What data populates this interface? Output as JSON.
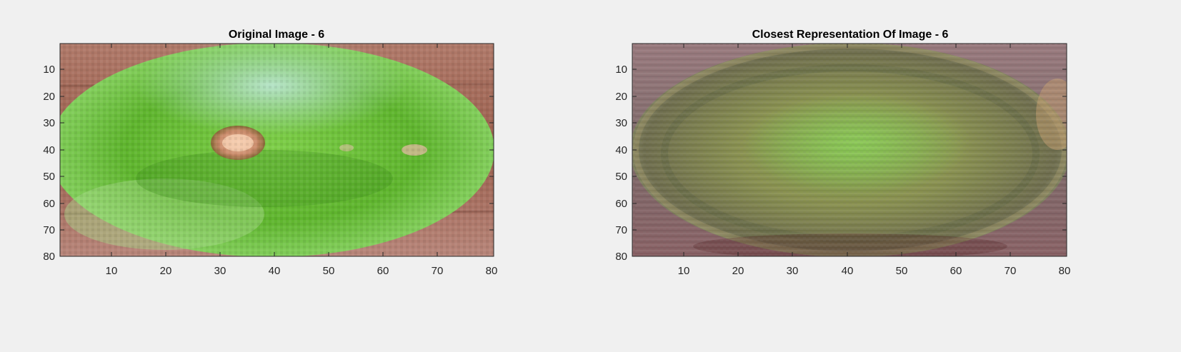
{
  "figure": {
    "background": "#f0f0f0",
    "axes": [
      {
        "title": "Original Image - 6",
        "xticks": [
          "10",
          "20",
          "30",
          "40",
          "50",
          "60",
          "70",
          "80"
        ],
        "yticks": [
          "10",
          "20",
          "30",
          "40",
          "50",
          "60",
          "70",
          "80"
        ],
        "image": {
          "content": "green mango fruit on wooden table",
          "background_color": "#a06a5c",
          "fruit_color": "#6cc23a"
        }
      },
      {
        "title": "Closest Representation Of Image - 6",
        "xticks": [
          "10",
          "20",
          "30",
          "40",
          "50",
          "60",
          "70",
          "80"
        ],
        "yticks": [
          "10",
          "20",
          "30",
          "40",
          "50",
          "60",
          "70",
          "80"
        ],
        "image": {
          "content": "blurred reconstruction of fruit",
          "background_color": "#8a6e6e",
          "fruit_color": "#7e8a4c"
        }
      }
    ]
  }
}
